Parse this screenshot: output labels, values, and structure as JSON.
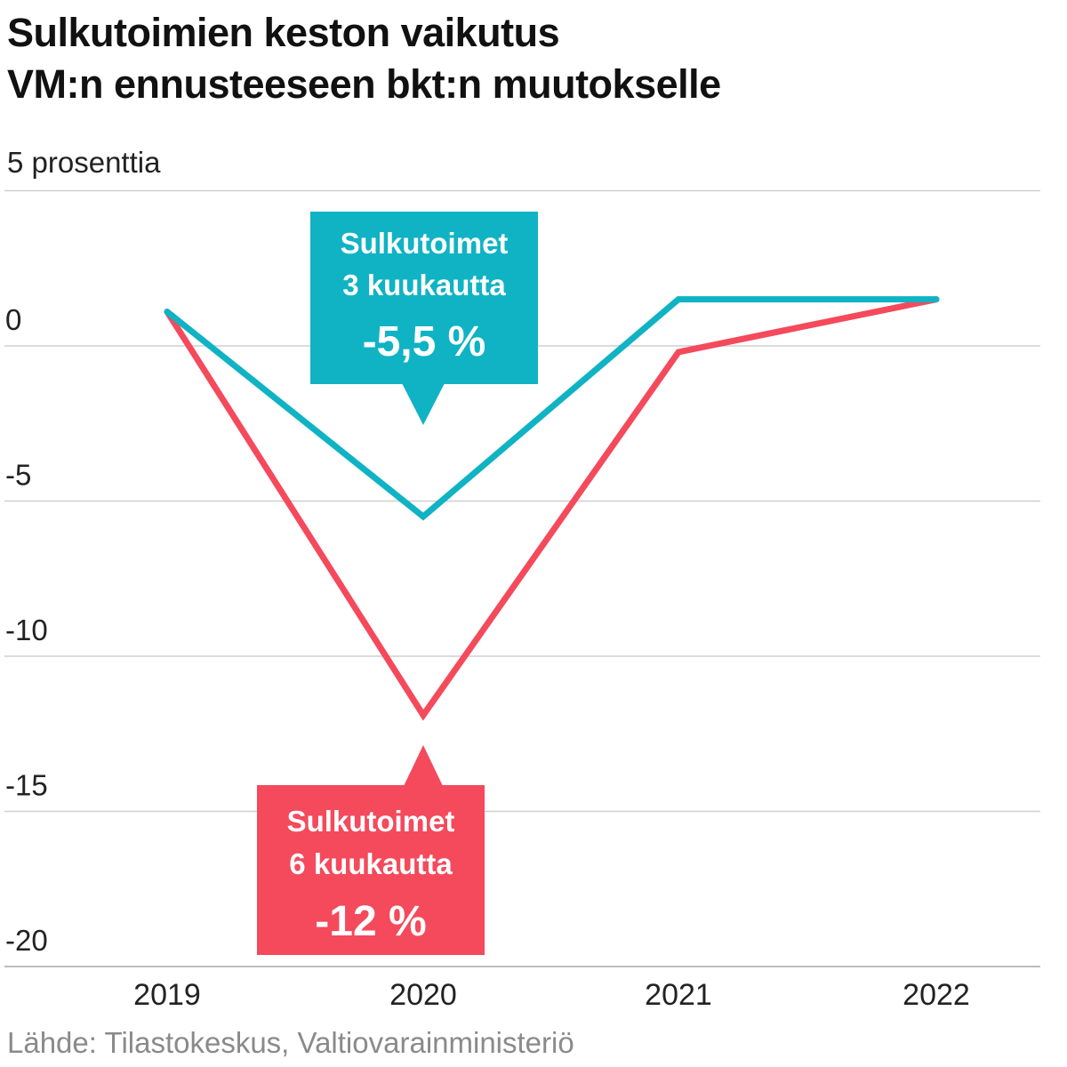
{
  "title_line1": "Sulkutoimien keston vaikutus",
  "title_line2": "VM:n ennusteeseen bkt:n muutokselle",
  "unit_label": "5 prosenttia",
  "source": "Lähde: Tilastokeskus, Valtiovarainministeriö",
  "colors": {
    "teal": "#0fb3c4",
    "red": "#f44a5c",
    "grid": "#cfcfcf",
    "text": "#111111"
  },
  "chart_data": {
    "type": "line",
    "x": [
      "2019",
      "2020",
      "2021",
      "2022"
    ],
    "yticks": [
      5,
      0,
      -5,
      -10,
      -15,
      -20
    ],
    "ylim": [
      -20,
      5
    ],
    "grid": true,
    "series": [
      {
        "name": "Sulkutoimet 3 kuukautta",
        "color": "#0fb3c4",
        "values": [
          1.1,
          -5.5,
          1.5,
          1.5
        ]
      },
      {
        "name": "Sulkutoimet 6 kuukautta",
        "color": "#f44a5c",
        "values": [
          1.1,
          -11.9,
          -0.2,
          1.5
        ]
      }
    ],
    "annotations": [
      {
        "series": 0,
        "x": "2020",
        "line1": "Sulkutoimet",
        "line2": "3 kuukautta",
        "value": "-5,5 %",
        "placement": "above"
      },
      {
        "series": 1,
        "x": "2020",
        "line1": "Sulkutoimet",
        "line2": "6 kuukautta",
        "value": "-12 %",
        "placement": "below"
      }
    ]
  }
}
